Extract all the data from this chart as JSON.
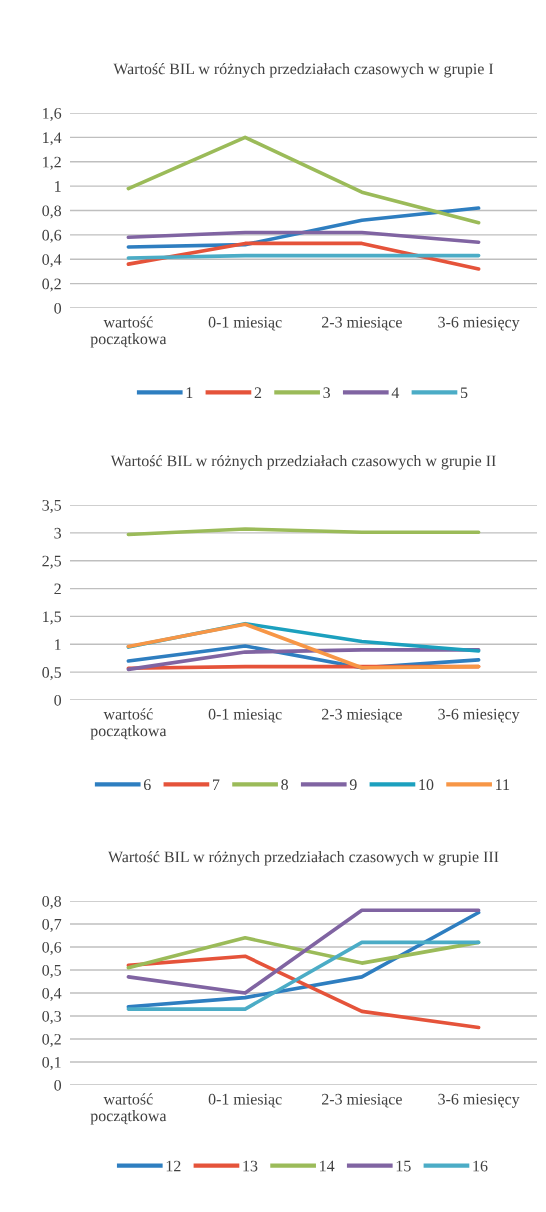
{
  "chart_data": [
    {
      "type": "line",
      "title": "Wartość BIL w różnych przedziałach czasowych w grupie I",
      "categories": [
        "wartość początkowa",
        "0-1 miesiąc",
        "2-3 miesiące",
        "3-6 miesięcy"
      ],
      "series": [
        {
          "name": "1",
          "color": "#2e7ec0",
          "values": [
            0.5,
            0.52,
            0.72,
            0.82
          ]
        },
        {
          "name": "2",
          "color": "#e5533a",
          "values": [
            0.36,
            0.53,
            0.53,
            0.32
          ]
        },
        {
          "name": "3",
          "color": "#9bbb59",
          "values": [
            0.98,
            1.4,
            0.95,
            0.7
          ]
        },
        {
          "name": "4",
          "color": "#8064a2",
          "values": [
            0.58,
            0.62,
            0.62,
            0.54
          ]
        },
        {
          "name": "5",
          "color": "#4bacc6",
          "values": [
            0.41,
            0.43,
            0.43,
            0.43
          ]
        }
      ],
      "ylim": [
        0,
        1.6
      ],
      "yticks": [
        0,
        {
          "value": 0.2,
          "label": "0,2"
        },
        {
          "value": 0.4,
          "label": "0,4"
        },
        {
          "value": 0.6,
          "label": "0,6"
        },
        {
          "value": 0.8,
          "label": "0,8"
        },
        1,
        {
          "value": 1.2,
          "label": "1,2"
        },
        {
          "value": 1.4,
          "label": "1,4"
        },
        {
          "value": 1.6,
          "label": "1,6"
        }
      ],
      "grid": "y",
      "legend": "bottom",
      "marker": "none",
      "line_style": "solid"
    },
    {
      "type": "line",
      "title": "Wartość BIL w różnych przedziałach czasowych w grupie II",
      "categories": [
        "wartość początkowa",
        "0-1 miesiąc",
        "2-3 miesiące",
        "3-6 miesięcy"
      ],
      "series": [
        {
          "name": "6",
          "color": "#2e7ec0",
          "values": [
            0.7,
            0.97,
            0.58,
            0.72
          ]
        },
        {
          "name": "7",
          "color": "#e5533a",
          "values": [
            0.57,
            0.6,
            0.6,
            0.6
          ]
        },
        {
          "name": "8",
          "color": "#9bbb59",
          "values": [
            2.97,
            3.07,
            3.01,
            3.01
          ]
        },
        {
          "name": "9",
          "color": "#8064a2",
          "values": [
            0.55,
            0.86,
            0.9,
            0.9
          ]
        },
        {
          "name": "10",
          "color": "#1ca0be",
          "values": [
            0.95,
            1.37,
            1.05,
            0.88
          ]
        },
        {
          "name": "11",
          "color": "#f79646",
          "values": [
            0.96,
            1.36,
            0.58,
            0.6
          ]
        }
      ],
      "ylim": [
        0,
        3.5
      ],
      "yticks": [
        0,
        {
          "value": 0.5,
          "label": "0,5"
        },
        1,
        {
          "value": 1.5,
          "label": "1,5"
        },
        2,
        {
          "value": 2.5,
          "label": "2,5"
        },
        3,
        {
          "value": 3.5,
          "label": "3,5"
        }
      ],
      "grid": "y",
      "legend": "bottom",
      "marker": "none",
      "line_style": "solid"
    },
    {
      "type": "line",
      "title": "Wartość BIL w różnych przedziałach czasowych w grupie III",
      "categories": [
        "wartość początkowa",
        "0-1 miesiąc",
        "2-3 miesiące",
        "3-6 miesięcy"
      ],
      "series": [
        {
          "name": "12",
          "color": "#2e7ec0",
          "values": [
            0.34,
            0.38,
            0.47,
            0.75
          ]
        },
        {
          "name": "13",
          "color": "#e5533a",
          "values": [
            0.52,
            0.56,
            0.32,
            0.25
          ]
        },
        {
          "name": "14",
          "color": "#9bbb59",
          "values": [
            0.51,
            0.64,
            0.53,
            0.62
          ]
        },
        {
          "name": "15",
          "color": "#8064a2",
          "values": [
            0.47,
            0.4,
            0.76,
            0.76
          ]
        },
        {
          "name": "16",
          "color": "#4bacc6",
          "values": [
            0.33,
            0.33,
            0.62,
            0.62
          ]
        }
      ],
      "ylim": [
        0,
        0.8
      ],
      "yticks": [
        0,
        {
          "value": 0.1,
          "label": "0,1"
        },
        {
          "value": 0.2,
          "label": "0,2"
        },
        {
          "value": 0.3,
          "label": "0,3"
        },
        {
          "value": 0.4,
          "label": "0,4"
        },
        {
          "value": 0.5,
          "label": "0,5"
        },
        {
          "value": 0.6,
          "label": "0,6"
        },
        {
          "value": 0.7,
          "label": "0,7"
        },
        {
          "value": 0.8,
          "label": "0,8"
        }
      ],
      "grid": "y",
      "legend": "bottom",
      "marker": "none",
      "line_style": "solid"
    }
  ]
}
